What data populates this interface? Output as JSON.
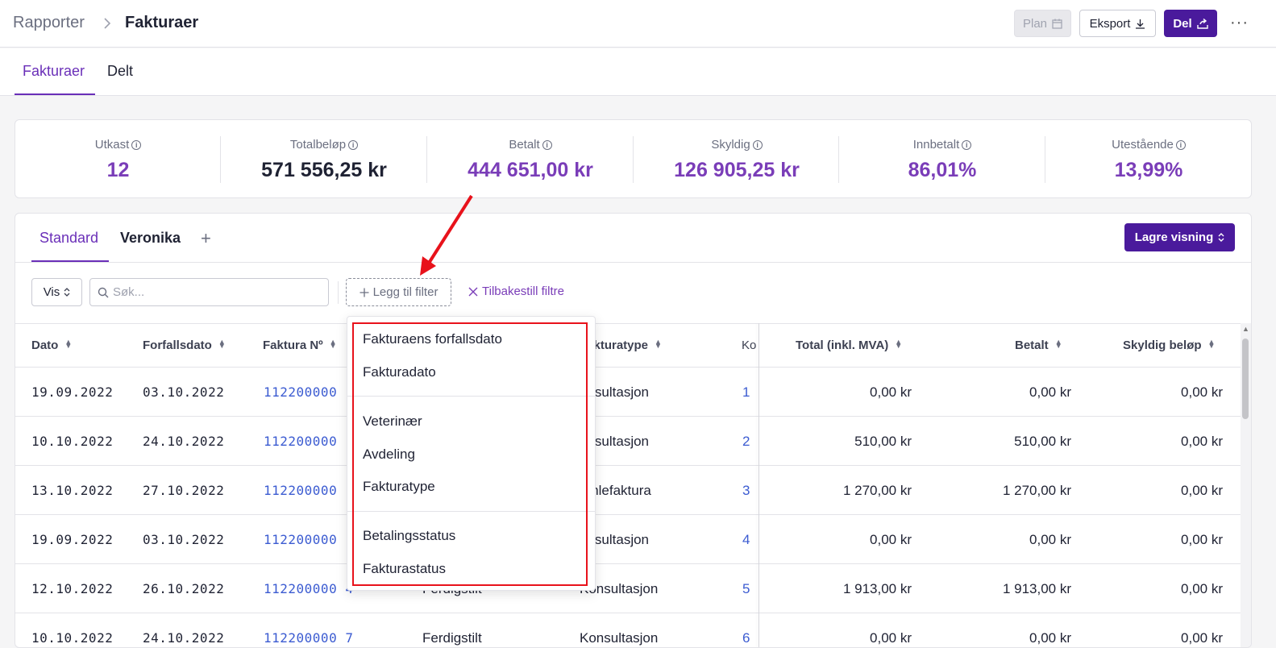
{
  "breadcrumb": {
    "parent": "Rapporter",
    "current": "Fakturaer"
  },
  "toolbar": {
    "plan_label": "Plan",
    "export_label": "Eksport",
    "share_label": "Del",
    "more_label": "···"
  },
  "tabs": [
    {
      "label": "Fakturaer",
      "active": true
    },
    {
      "label": "Delt",
      "active": false
    }
  ],
  "stats": [
    {
      "label": "Utkast",
      "value": "12"
    },
    {
      "label": "Totalbeløp",
      "value": "571 556,25 kr"
    },
    {
      "label": "Betalt",
      "value": "444 651,00 kr"
    },
    {
      "label": "Skyldig",
      "value": "126 905,25 kr"
    },
    {
      "label": "Innbetalt",
      "value": "86,01%"
    },
    {
      "label": "Utestående",
      "value": "13,99%"
    }
  ],
  "views": {
    "tabs": [
      {
        "label": "Standard",
        "active": true
      },
      {
        "label": "Veronika",
        "active": false
      }
    ],
    "add_label": "+",
    "save_label": "Lagre visning"
  },
  "filters": {
    "vis_label": "Vis",
    "search_placeholder": "Søk...",
    "add_filter_label": "Legg til filter",
    "reset_label": "Tilbakestill filtre"
  },
  "table": {
    "columns": [
      "Dato",
      "Forfallsdato",
      "Faktura Nº",
      "Fakturatype",
      "Ko",
      "Total (inkl. MVA)",
      "Betalt",
      "Skyldig beløp"
    ],
    "rows": [
      {
        "dato": "19.09.2022",
        "forfall": "03.10.2022",
        "faktura": "112200000",
        "status": "",
        "type": "onsultasjon",
        "ko": "1",
        "total": "0,00 kr",
        "betalt": "0,00 kr",
        "skyldig": "0,00 kr"
      },
      {
        "dato": "10.10.2022",
        "forfall": "24.10.2022",
        "faktura": "112200000",
        "status": "",
        "type": "onsultasjon",
        "ko": "2",
        "total": "510,00 kr",
        "betalt": "510,00 kr",
        "skyldig": "0,00 kr"
      },
      {
        "dato": "13.10.2022",
        "forfall": "27.10.2022",
        "faktura": "112200000",
        "status": "",
        "type": "amlefaktura",
        "ko": "3",
        "total": "1 270,00 kr",
        "betalt": "1 270,00 kr",
        "skyldig": "0,00 kr"
      },
      {
        "dato": "19.09.2022",
        "forfall": "03.10.2022",
        "faktura": "112200000",
        "status": "",
        "type": "onsultasjon",
        "ko": "4",
        "total": "0,00 kr",
        "betalt": "0,00 kr",
        "skyldig": "0,00 kr"
      },
      {
        "dato": "12.10.2022",
        "forfall": "26.10.2022",
        "faktura": "112200000 4",
        "status": "Ferdigstilt",
        "type": "Konsultasjon",
        "ko": "5",
        "total": "1 913,00 kr",
        "betalt": "1 913,00 kr",
        "skyldig": "0,00 kr"
      },
      {
        "dato": "10.10.2022",
        "forfall": "24.10.2022",
        "faktura": "112200000 7",
        "status": "Ferdigstilt",
        "type": "Konsultasjon",
        "ko": "6",
        "total": "0,00 kr",
        "betalt": "0,00 kr",
        "skyldig": "0,00 kr"
      }
    ]
  },
  "dropdown": {
    "groups": [
      [
        "Fakturaens forfallsdato",
        "Fakturadato"
      ],
      [
        "Veterinær",
        "Avdeling",
        "Fakturatype"
      ],
      [
        "Betalingsstatus",
        "Fakturastatus"
      ]
    ]
  },
  "colors": {
    "accent": "#6a2fb8",
    "primary_button": "#4a1a9c",
    "link": "#3b5bd1",
    "highlight": "#e8121b"
  }
}
